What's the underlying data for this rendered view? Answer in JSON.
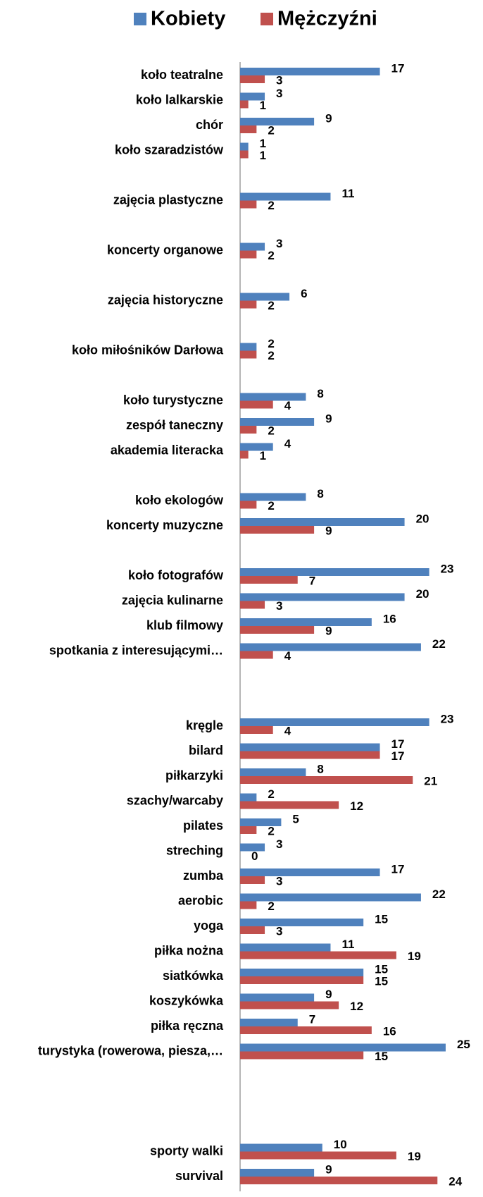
{
  "chart_data": {
    "type": "bar",
    "orientation": "horizontal",
    "legend": "top",
    "categories": [
      "koło teatralne",
      "koło lalkarskie",
      "chór",
      "koło szaradzistów",
      null,
      "zajęcia plastyczne",
      null,
      "koncerty organowe",
      null,
      "zajęcia historyczne",
      null,
      "koło miłośników Darłowa",
      null,
      "koło turystyczne",
      "zespół taneczny",
      "akademia literacka",
      null,
      "koło ekologów",
      "koncerty muzyczne",
      null,
      "koło fotografów",
      "zajęcia kulinarne",
      "klub filmowy",
      "spotkania z interesującymi…",
      null,
      null,
      "kręgle",
      "bilard",
      "piłkarzyki",
      "szachy/warcaby",
      "pilates",
      "streching",
      "zumba",
      "aerobic",
      "yoga",
      "piłka nożna",
      "siatkówka",
      "koszykówka",
      "piłka ręczna",
      "turystyka (rowerowa, piesza,…",
      null,
      null,
      null,
      "sporty walki",
      "survival"
    ],
    "series": [
      {
        "name": "Kobiety",
        "color": "#4f81bd",
        "values": [
          17,
          3,
          9,
          1,
          null,
          11,
          null,
          3,
          null,
          6,
          null,
          2,
          null,
          8,
          9,
          4,
          null,
          8,
          20,
          null,
          23,
          20,
          16,
          22,
          null,
          null,
          23,
          17,
          8,
          2,
          5,
          3,
          17,
          22,
          15,
          11,
          15,
          9,
          7,
          25,
          null,
          null,
          null,
          10,
          9
        ]
      },
      {
        "name": "Mężczyźni",
        "color": "#c0504d",
        "values": [
          3,
          1,
          2,
          1,
          null,
          2,
          null,
          2,
          null,
          2,
          null,
          2,
          null,
          4,
          2,
          1,
          null,
          2,
          9,
          null,
          7,
          3,
          9,
          4,
          null,
          null,
          4,
          17,
          21,
          12,
          2,
          0,
          3,
          2,
          3,
          19,
          15,
          12,
          16,
          15,
          null,
          null,
          null,
          19,
          24
        ]
      }
    ],
    "xlim": [
      0,
      28
    ]
  }
}
